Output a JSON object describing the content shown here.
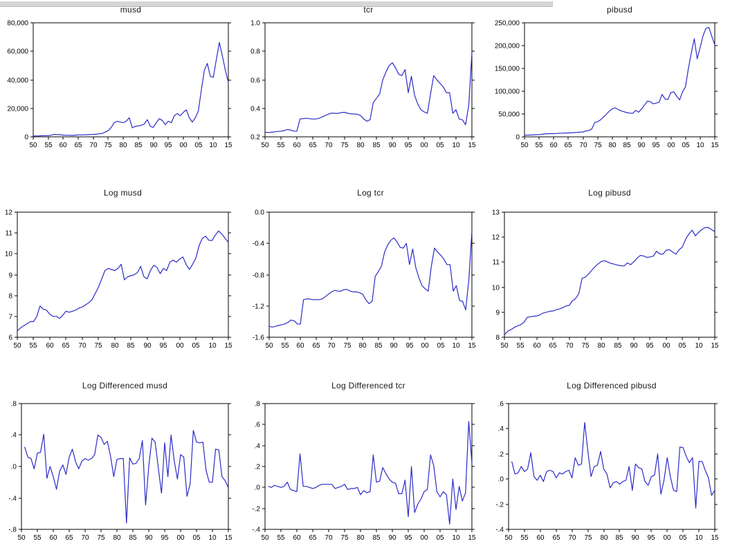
{
  "page": {
    "background": "#ffffff"
  },
  "window_strip_color": "#d6d6d6",
  "chart_style": {
    "line_color": "#2b2bc8",
    "axis_color": "#000000",
    "text_color": "#000000"
  },
  "chart_shared": {
    "x_axis_tick_values": [
      1950,
      1955,
      1960,
      1965,
      1970,
      1975,
      1980,
      1985,
      1990,
      1995,
      2000,
      2005,
      2010,
      2015
    ],
    "x_axis_tick_labels": [
      "50",
      "55",
      "60",
      "65",
      "70",
      "75",
      "80",
      "85",
      "90",
      "95",
      "00",
      "05",
      "10",
      "15"
    ],
    "grid": false,
    "legend": "none",
    "frequency": "annual"
  },
  "chart_data": [
    {
      "type": "line",
      "title": "musd",
      "xlabel": "",
      "ylabel": "",
      "x_start": 1950,
      "x_step": 1,
      "xlim": [
        1950,
        2015
      ],
      "ylim": [
        0,
        80000
      ],
      "yticks": {
        "values": [
          0,
          20000,
          40000,
          60000,
          80000
        ],
        "labels": [
          "0",
          "20,000",
          "40,000",
          "60,000",
          "80,000"
        ]
      },
      "values": [
        545,
        630,
        700,
        770,
        855,
        855,
        1100,
        1810,
        1560,
        1480,
        1210,
        1100,
        1100,
        990,
        1150,
        1410,
        1340,
        1410,
        1480,
        1640,
        1720,
        1900,
        2100,
        2440,
        3290,
        4450,
        6630,
        9900,
        10940,
        10400,
        9900,
        10940,
        13360,
        6310,
        7330,
        7710,
        8100,
        8960,
        12090,
        7330,
        6630,
        9900,
        12710,
        11500,
        8520,
        10940,
        9900,
        14770,
        16320,
        14770,
        17150,
        18920,
        13360,
        10400,
        13360,
        18030,
        32860,
        46630,
        51550,
        42380,
        41800,
        54180,
        66170,
        56860,
        46630,
        38310
      ]
    },
    {
      "type": "line",
      "title": "tcr",
      "xlabel": "",
      "ylabel": "",
      "x_start": 1950,
      "x_step": 1,
      "xlim": [
        1950,
        2015
      ],
      "ylim": [
        0.2,
        1.0
      ],
      "yticks": {
        "values": [
          0.2,
          0.4,
          0.6,
          0.8,
          1.0
        ],
        "labels": [
          "0.2",
          "0.4",
          "0.6",
          "0.8",
          "1.0"
        ]
      },
      "values": [
        0.232,
        0.23,
        0.232,
        0.235,
        0.238,
        0.24,
        0.243,
        0.252,
        0.248,
        0.24,
        0.24,
        0.325,
        0.328,
        0.33,
        0.327,
        0.325,
        0.325,
        0.33,
        0.34,
        0.35,
        0.36,
        0.367,
        0.365,
        0.365,
        0.37,
        0.372,
        0.365,
        0.362,
        0.36,
        0.358,
        0.35,
        0.325,
        0.31,
        0.32,
        0.44,
        0.47,
        0.5,
        0.6,
        0.655,
        0.7,
        0.72,
        0.685,
        0.64,
        0.63,
        0.672,
        0.51,
        0.625,
        0.49,
        0.43,
        0.39,
        0.375,
        0.365,
        0.5,
        0.63,
        0.6,
        0.575,
        0.55,
        0.51,
        0.51,
        0.365,
        0.39,
        0.325,
        0.32,
        0.285,
        0.42,
        0.79
      ]
    },
    {
      "type": "line",
      "title": "pibusd",
      "xlabel": "",
      "ylabel": "",
      "x_start": 1950,
      "x_step": 1,
      "xlim": [
        1950,
        2015
      ],
      "ylim": [
        0,
        250000
      ],
      "yticks": {
        "values": [
          0,
          50000,
          100000,
          150000,
          200000,
          250000
        ],
        "labels": [
          "0",
          "50,000",
          "100,000",
          "150,000",
          "200,000",
          "250,000"
        ]
      },
      "values": [
        3300,
        3800,
        4000,
        4400,
        4700,
        4900,
        5400,
        6600,
        6800,
        6900,
        7000,
        7300,
        7900,
        8100,
        8400,
        8500,
        9000,
        9200,
        9700,
        10400,
        10600,
        12700,
        14000,
        17200,
        31500,
        33000,
        37500,
        43500,
        50000,
        56500,
        61500,
        63500,
        60000,
        57000,
        55000,
        53000,
        52000,
        51500,
        58000,
        54000,
        61000,
        70000,
        78500,
        77000,
        72500,
        74000,
        76000,
        93000,
        83000,
        82000,
        97000,
        98500,
        89000,
        81000,
        99000,
        110000,
        150000,
        185000,
        215000,
        171000,
        196000,
        222000,
        238000,
        240000,
        220000,
        202000
      ]
    },
    {
      "type": "line",
      "title": "Log musd",
      "xlabel": "",
      "ylabel": "",
      "x_start": 1950,
      "x_step": 1,
      "xlim": [
        1950,
        2015
      ],
      "ylim": [
        6,
        12
      ],
      "yticks": {
        "values": [
          6,
          7,
          8,
          9,
          10,
          11,
          12
        ],
        "labels": [
          "6",
          "7",
          "8",
          "9",
          "10",
          "11",
          "12"
        ]
      },
      "values": [
        6.3,
        6.45,
        6.55,
        6.65,
        6.75,
        6.75,
        7.0,
        7.5,
        7.35,
        7.3,
        7.1,
        7.0,
        7.0,
        6.9,
        7.05,
        7.25,
        7.2,
        7.25,
        7.3,
        7.4,
        7.45,
        7.55,
        7.65,
        7.8,
        8.1,
        8.4,
        8.8,
        9.2,
        9.3,
        9.25,
        9.2,
        9.3,
        9.5,
        8.75,
        8.9,
        8.95,
        9.0,
        9.1,
        9.4,
        8.9,
        8.8,
        9.2,
        9.45,
        9.35,
        9.05,
        9.3,
        9.2,
        9.6,
        9.7,
        9.6,
        9.75,
        9.85,
        9.5,
        9.25,
        9.5,
        9.8,
        10.4,
        10.75,
        10.85,
        10.65,
        10.64,
        10.9,
        11.1,
        10.95,
        10.75,
        10.55
      ]
    },
    {
      "type": "line",
      "title": "Log tcr",
      "xlabel": "",
      "ylabel": "",
      "x_start": 1950,
      "x_step": 1,
      "xlim": [
        1950,
        2015
      ],
      "ylim": [
        -1.6,
        0.0
      ],
      "yticks": {
        "values": [
          -1.6,
          -1.2,
          -0.8,
          -0.4,
          0.0
        ],
        "labels": [
          "-1.6",
          "-1.2",
          "-0.8",
          "-0.4",
          "0.0"
        ]
      },
      "values": [
        -1.46,
        -1.47,
        -1.46,
        -1.45,
        -1.44,
        -1.43,
        -1.41,
        -1.38,
        -1.39,
        -1.43,
        -1.43,
        -1.12,
        -1.11,
        -1.11,
        -1.12,
        -1.12,
        -1.12,
        -1.11,
        -1.08,
        -1.05,
        -1.02,
        -1.0,
        -1.01,
        -1.01,
        -0.99,
        -0.99,
        -1.01,
        -1.02,
        -1.02,
        -1.03,
        -1.05,
        -1.12,
        -1.17,
        -1.14,
        -0.82,
        -0.76,
        -0.69,
        -0.51,
        -0.42,
        -0.36,
        -0.33,
        -0.38,
        -0.45,
        -0.46,
        -0.4,
        -0.67,
        -0.47,
        -0.71,
        -0.84,
        -0.94,
        -0.98,
        -1.01,
        -0.69,
        -0.46,
        -0.51,
        -0.55,
        -0.6,
        -0.67,
        -0.67,
        -1.01,
        -0.94,
        -1.13,
        -1.14,
        -1.25,
        -0.87,
        -0.24
      ]
    },
    {
      "type": "line",
      "title": "Log pibusd",
      "xlabel": "",
      "ylabel": "",
      "x_start": 1950,
      "x_step": 1,
      "xlim": [
        1950,
        2015
      ],
      "ylim": [
        8,
        13
      ],
      "yticks": {
        "values": [
          8,
          9,
          10,
          11,
          12,
          13
        ],
        "labels": [
          "8",
          "9",
          "10",
          "11",
          "12",
          "13"
        ]
      },
      "values": [
        8.1,
        8.24,
        8.3,
        8.39,
        8.45,
        8.5,
        8.59,
        8.79,
        8.82,
        8.84,
        8.85,
        8.9,
        8.97,
        9.0,
        9.04,
        9.05,
        9.1,
        9.13,
        9.18,
        9.25,
        9.27,
        9.45,
        9.55,
        9.75,
        10.36,
        10.4,
        10.53,
        10.68,
        10.82,
        10.94,
        11.03,
        11.06,
        11.0,
        10.95,
        10.92,
        10.88,
        10.86,
        10.85,
        10.97,
        10.9,
        11.02,
        11.16,
        11.27,
        11.25,
        11.19,
        11.21,
        11.24,
        11.44,
        11.33,
        11.32,
        11.48,
        11.5,
        11.4,
        11.32,
        11.5,
        11.61,
        11.92,
        12.13,
        12.28,
        12.05,
        12.19,
        12.31,
        12.38,
        12.39,
        12.3,
        12.22
      ]
    },
    {
      "type": "line",
      "title": "Log Differenced musd",
      "xlabel": "",
      "ylabel": "",
      "x_start": 1951,
      "x_step": 1,
      "xlim": [
        1950,
        2015
      ],
      "ylim": [
        -0.8,
        0.8
      ],
      "yticks": {
        "values": [
          -0.8,
          -0.4,
          0,
          0.4,
          0.8
        ],
        "labels": [
          "-.8",
          "-.4",
          ".0",
          ".4",
          ".8"
        ]
      },
      "values": [
        0.25,
        0.12,
        0.1,
        -0.03,
        0.17,
        0.18,
        0.41,
        -0.15,
        0.0,
        -0.13,
        -0.29,
        -0.06,
        0.02,
        -0.1,
        0.12,
        0.22,
        0.06,
        -0.03,
        0.07,
        0.1,
        0.08,
        0.1,
        0.15,
        0.4,
        0.37,
        0.28,
        0.32,
        0.13,
        -0.13,
        0.09,
        0.1,
        0.1,
        -0.72,
        0.11,
        0.03,
        0.04,
        0.1,
        0.33,
        -0.49,
        0.0,
        0.36,
        0.31,
        -0.02,
        -0.34,
        0.3,
        -0.13,
        0.4,
        0.07,
        -0.16,
        0.15,
        0.12,
        -0.38,
        -0.22,
        0.46,
        0.31,
        0.3,
        0.31,
        -0.05,
        -0.2,
        -0.2,
        0.22,
        0.21,
        -0.13,
        -0.18,
        -0.27
      ]
    },
    {
      "type": "line",
      "title": "Log Differenced tcr",
      "xlabel": "",
      "ylabel": "",
      "x_start": 1951,
      "x_step": 1,
      "xlim": [
        1950,
        2015
      ],
      "ylim": [
        -0.4,
        0.8
      ],
      "yticks": {
        "values": [
          -0.4,
          -0.2,
          0,
          0.2,
          0.4,
          0.6,
          0.8
        ],
        "labels": [
          "-.4",
          "-.2",
          ".0",
          ".2",
          ".4",
          ".6",
          ".8"
        ]
      },
      "values": [
        0.01,
        0.0,
        0.02,
        0.01,
        0.0,
        0.01,
        0.05,
        -0.02,
        -0.03,
        -0.04,
        0.32,
        0.01,
        0.01,
        0.0,
        -0.01,
        0.0,
        0.02,
        0.03,
        0.03,
        0.03,
        0.03,
        -0.01,
        0.0,
        0.01,
        0.03,
        -0.02,
        -0.01,
        -0.01,
        0.0,
        -0.07,
        -0.03,
        -0.05,
        -0.04,
        0.31,
        0.05,
        0.06,
        0.19,
        0.13,
        0.08,
        0.05,
        0.04,
        -0.06,
        -0.06,
        0.07,
        -0.28,
        0.2,
        -0.24,
        -0.16,
        -0.11,
        -0.04,
        -0.02,
        0.31,
        0.21,
        -0.04,
        -0.09,
        -0.04,
        -0.07,
        -0.35,
        0.08,
        -0.21,
        0.01,
        -0.13,
        -0.05,
        0.63,
        0.23
      ]
    },
    {
      "type": "line",
      "title": "Log Differenced pibusd",
      "xlabel": "",
      "ylabel": "",
      "x_start": 1951,
      "x_step": 1,
      "xlim": [
        1950,
        2015
      ],
      "ylim": [
        -0.4,
        0.6
      ],
      "yticks": {
        "values": [
          -0.4,
          -0.2,
          0,
          0.2,
          0.4,
          0.6
        ],
        "labels": [
          "-.4",
          "-.2",
          ".0",
          ".2",
          ".4",
          ".6"
        ]
      },
      "values": [
        0.14,
        0.04,
        0.05,
        0.1,
        0.06,
        0.08,
        0.21,
        0.02,
        -0.01,
        0.03,
        -0.02,
        0.06,
        0.07,
        0.06,
        0.01,
        0.05,
        0.04,
        0.06,
        0.07,
        0.01,
        0.17,
        0.11,
        0.12,
        0.45,
        0.22,
        0.02,
        0.1,
        0.11,
        0.22,
        0.08,
        0.04,
        -0.07,
        -0.03,
        -0.02,
        -0.04,
        -0.02,
        -0.01,
        0.1,
        -0.09,
        0.12,
        0.09,
        0.08,
        -0.02,
        -0.05,
        0.02,
        0.03,
        0.2,
        -0.12,
        -0.01,
        0.17,
        0.02,
        -0.09,
        -0.1,
        0.255,
        0.25,
        0.18,
        0.13,
        0.17,
        -0.23,
        0.14,
        0.14,
        0.07,
        0.01,
        -0.13,
        -0.09
      ]
    }
  ]
}
